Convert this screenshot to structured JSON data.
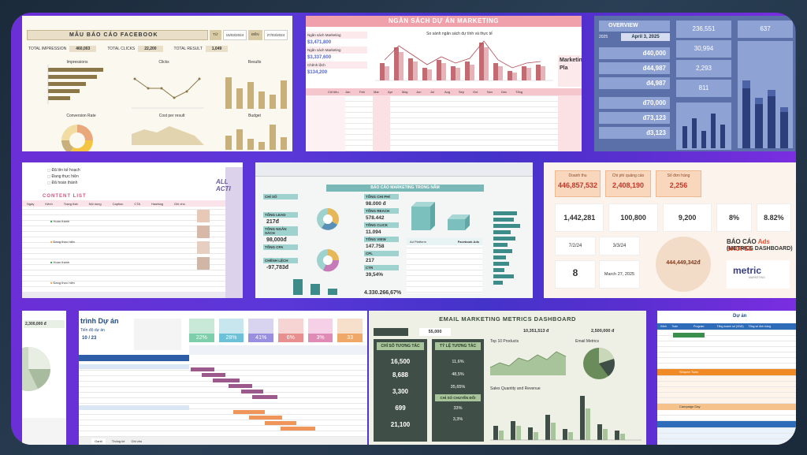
{
  "fb": {
    "title": "MẪU BÁO CÁO FACEBOOK",
    "from_label": "TỪ",
    "from_val": "15/03/2024",
    "to_label": "ĐẾN",
    "to_val": "27/03/2024",
    "k1_label": "TOTAL IMPRESSION",
    "k1_val": "460,003",
    "k2_label": "TOTAL CLICKS",
    "k2_val": "22,200",
    "k3_label": "TOTAL RESULT",
    "k3_val": "1,049",
    "c1": "Impressions",
    "c2": "Clicks",
    "c3": "Results",
    "c4": "Conversion Rate",
    "c5": "Cost per result",
    "c6": "Budget"
  },
  "ns": {
    "title": "NGÂN SÁCH DỰ ÁN MARKETING",
    "chart_title": "So sánh ngân sách dự tính và thực tế",
    "r1": "Ngân sách Marketing",
    "r1v": "$3,471,800",
    "r2": "Ngân sách Marketing",
    "r2v": "$3,337,600",
    "r3": "Chênh lệch",
    "r3v": "$134,200",
    "side": "Marketing Pla",
    "months": [
      "Jan",
      "Feb",
      "Mar",
      "Apr",
      "May",
      "Jun",
      "Jul",
      "Aug",
      "Sep",
      "Oct",
      "Nov",
      "Dec"
    ],
    "hdr0": "Chỉ tiêu",
    "hdr1": "Tổng"
  },
  "ov": {
    "title": "OVERVIEW",
    "date": "April 3, 2025",
    "year": "2025",
    "v1": "236,551",
    "v2": "30,994",
    "v3": "2,293",
    "v4": "811",
    "v5": "637",
    "m1": "đ40,000",
    "m2": "đ44,987",
    "m3": "đ4,987",
    "m4": "đ70,000",
    "m5": "đ73,123",
    "m6": "đ3,123"
  },
  "ct": {
    "title": "CONTENT LIST",
    "legend": [
      "Đã lên kế hoạch",
      "Đang thực hiện",
      "Đã hoàn thành"
    ],
    "all": "ALL ACTI",
    "cols": [
      "Ngày",
      "Kênh",
      "Trạng thái",
      "Nội dung",
      "Caption",
      "CTA",
      "Hashtag",
      "Ghi chú"
    ],
    "s1": "Hoàn thành",
    "s2": "Đang thực hiện",
    "s3": "Hoàn thành",
    "s4": "Đang thực hiện",
    "s5": "Hoàn thành"
  },
  "mk": {
    "title": "BÁO CÁO MARKETING TRONG NĂM",
    "l1": "CHỈ SỐ",
    "l2": "TỔNG LEAD",
    "l3": "TỔNG NGÂN SÁCH",
    "l4": "TỔNG CPA",
    "l5": "CHÊNH LỆCH",
    "v1": "217đ",
    "v2": "98,000đ",
    "v3": "-97,783đ",
    "r1": "TỔNG CHI PHÍ",
    "rv1": "98.000 đ",
    "r2": "TỔNG REACH",
    "rv2": "578.442",
    "r3": "TỔNG CLICK",
    "rv3": "11.094",
    "r4": "TỔNG VIEW",
    "rv4": "147.758",
    "r5": "CPL",
    "rv5": "217",
    "r6": "CTR",
    "rv6": "39,54%",
    "bottom": "4.330.266,67%",
    "src": "Facebook Ads"
  },
  "sh": {
    "l1": "Doanh thu",
    "v1": "446,857,532",
    "l2": "Chi phí quảng cáo",
    "v2": "2,408,190",
    "l3": "Số đơn hàng",
    "v3": "2,256",
    "v4": "1,442,281",
    "v5": "100,800",
    "v6": "9,200",
    "v7": "8%",
    "v8": "8.82%",
    "d1": "7/2/24",
    "d2": "3/3/24",
    "n1": "8",
    "d3": "March 27, 2025",
    "center": "444,449,342đ",
    "t1": "BÁO CÁO",
    "t1b": "Ads SHOPEE",
    "t2": "(METRICS DASHBOARD)",
    "logo": "metric",
    "logo_sub": "MARKETING"
  },
  "pie": {
    "v": "2,300,000 đ"
  },
  "gt": {
    "title": "trình Dự án",
    "sub": "Tiến độ dự án",
    "date": "10 / 23",
    "pcts": [
      "22%",
      "28%",
      "41%",
      "6%",
      "3%",
      "33"
    ],
    "tabs": [
      "Gantt",
      "Thống kê",
      "Ghi chú"
    ]
  },
  "em": {
    "title": "EMAIL MARKETING METRICS DASHBOARD",
    "topv1": "10,351,513 đ",
    "topv2": "2,500,000 đ",
    "topv3": "55,000",
    "b1": "CHỈ SỐ TƯƠNG TÁC",
    "b2": "TỶ LỆ TƯƠNG TÁC",
    "b3": "CHỈ SỐ CHUYỂN ĐỔI",
    "n1": "16,500",
    "n2": "8,688",
    "n3": "3,300",
    "n4": "699",
    "n5": "21,100",
    "p1": "11,6%",
    "p2": "48,5%",
    "p3": "35,65%",
    "p4": "33%",
    "p5": "3,3%",
    "cht1": "Top 10 Products",
    "cht2": "Email Metrics",
    "cht3": "Sales Quantity and Revenue"
  },
  "tb": {
    "title": "Dự án",
    "cols": [
      "Kênh",
      "Tuần",
      "Program",
      "Tổng doanh số (VND)",
      "Tổng số đơn hàng"
    ],
    "sections": [
      "Shopee Tuần",
      "Campaign Day"
    ]
  }
}
